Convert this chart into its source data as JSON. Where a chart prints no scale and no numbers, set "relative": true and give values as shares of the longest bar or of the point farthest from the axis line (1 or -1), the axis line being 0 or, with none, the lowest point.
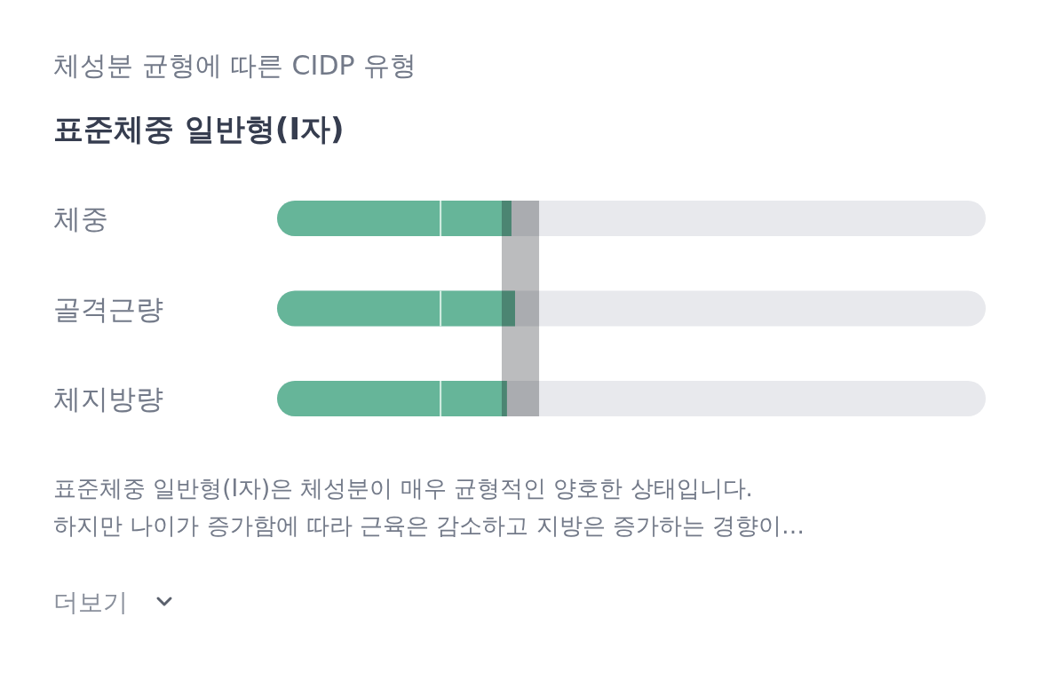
{
  "chart_data": {
    "type": "bar",
    "orientation": "horizontal",
    "relative": true,
    "title": "체성분 균형에 따른 CIDP 유형",
    "subtitle": "표준체중 일반형(I자)",
    "categories": [
      "체중",
      "골격근량",
      "체지방량"
    ],
    "values": [
      0.985,
      1,
      0.966
    ],
    "color": "#66b599",
    "bands": [
      {
        "axis": "x",
        "from": 0.944,
        "to": 1.101,
        "color": "#bbbcbe"
      }
    ],
    "ref_lines": [
      {
        "axis": "x",
        "value": 0.687,
        "color": "#d4eee3"
      }
    ],
    "annotations": [
      "표준체중 일반형(I자)은 체성분이 매우 균형적인 양호한 상태입니다.",
      "하지만 나이가 증가함에 따라 근육은 감소하고 지방은 증가하는 경향이…",
      "더보기"
    ]
  }
}
